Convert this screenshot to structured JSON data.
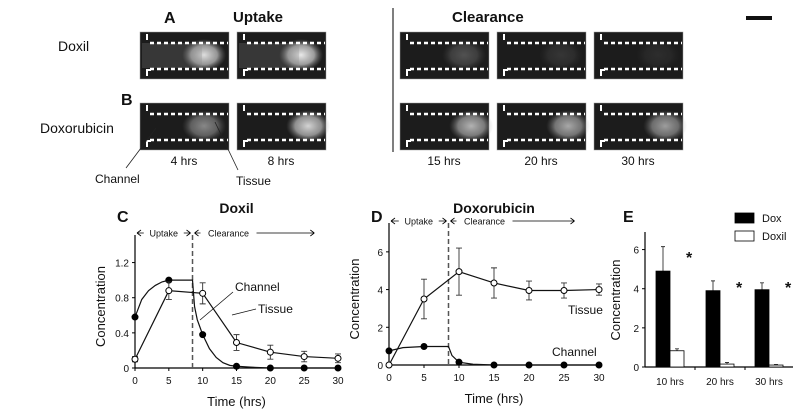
{
  "figure": {
    "panel_a": {
      "letter": "A",
      "row_label": "Doxil"
    },
    "panel_b": {
      "letter": "B",
      "row_label": "Doxorubicin"
    },
    "phase_uptake": "Uptake",
    "phase_clearance": "Clearance",
    "time_labels": [
      "4 hrs",
      "8 hrs",
      "15 hrs",
      "20 hrs",
      "30 hrs"
    ],
    "annot_channel": "Channel",
    "annot_tissue": "Tissue",
    "doxil_intensity": [
      0.9,
      0.95,
      0.25,
      0.12,
      0.08
    ],
    "dox_intensity": [
      0.5,
      0.85,
      0.7,
      0.65,
      0.6
    ]
  },
  "chart_data": [
    {
      "letter": "C",
      "type": "line",
      "title": "Doxil",
      "xlabel": "Time (hrs)",
      "ylabel": "Concentration",
      "xlim": [
        0,
        30
      ],
      "ylim": [
        0,
        1.4
      ],
      "xticks": [
        0,
        5,
        10,
        15,
        20,
        25,
        30
      ],
      "yticks": [
        "0",
        "0.4",
        "0.8",
        "1.2"
      ],
      "ytick_values": [
        0,
        0.4,
        0.8,
        1.2
      ],
      "phase_split": 8.5,
      "phase_labels": [
        "Uptake",
        "Clearance"
      ],
      "series": [
        {
          "name": "Channel",
          "marker": "filled",
          "x": [
            0,
            5,
            10,
            15,
            20,
            25,
            30
          ],
          "y": [
            0.58,
            1.0,
            0.38,
            0.02,
            0,
            0,
            0
          ],
          "err": [
            0,
            0,
            0,
            0,
            0,
            0,
            0
          ],
          "curve_x": [
            0,
            1,
            2,
            3,
            4,
            5,
            6,
            7,
            8.5,
            8.8,
            9.2,
            10,
            11,
            12,
            13,
            14,
            15,
            17,
            20,
            30
          ],
          "curve_y": [
            0.58,
            0.78,
            0.88,
            0.94,
            0.98,
            1.0,
            1.0,
            1.0,
            1.0,
            0.7,
            0.55,
            0.38,
            0.22,
            0.12,
            0.06,
            0.03,
            0.02,
            0.01,
            0,
            0
          ]
        },
        {
          "name": "Tissue",
          "marker": "open",
          "x": [
            0,
            5,
            10,
            15,
            20,
            25,
            30
          ],
          "y": [
            0.1,
            0.88,
            0.85,
            0.29,
            0.18,
            0.13,
            0.11
          ],
          "err": [
            0.03,
            0.1,
            0.12,
            0.09,
            0.08,
            0.06,
            0.05
          ]
        }
      ]
    },
    {
      "letter": "D",
      "type": "line",
      "title": "Doxorubicin",
      "xlabel": "Time (hrs)",
      "ylabel": "Concentration",
      "xlim": [
        0,
        30
      ],
      "ylim": [
        0,
        7
      ],
      "xticks": [
        0,
        5,
        10,
        15,
        20,
        25,
        30
      ],
      "yticks": [
        "0",
        "2",
        "4",
        "6"
      ],
      "ytick_values": [
        0,
        2,
        4,
        6
      ],
      "phase_split": 8.5,
      "phase_labels": [
        "Uptake",
        "Clearance"
      ],
      "series": [
        {
          "name": "Channel",
          "marker": "filled",
          "x": [
            0,
            5,
            10,
            15,
            20,
            25,
            30
          ],
          "y": [
            0.75,
            0.98,
            0.15,
            0,
            0,
            0,
            0
          ],
          "err": [
            0,
            0,
            0,
            0,
            0,
            0,
            0
          ],
          "curve_x": [
            0,
            2,
            5,
            8.5,
            9,
            10,
            12,
            15,
            30
          ],
          "curve_y": [
            0.75,
            0.92,
            0.98,
            0.98,
            0.5,
            0.15,
            0.04,
            0,
            0
          ]
        },
        {
          "name": "Tissue",
          "marker": "open",
          "x": [
            0,
            5,
            10,
            15,
            20,
            25,
            30
          ],
          "y": [
            0,
            3.5,
            4.95,
            4.35,
            3.95,
            3.95,
            4.0
          ],
          "err": [
            0,
            1.05,
            1.25,
            0.8,
            0.5,
            0.4,
            0.3
          ]
        }
      ]
    },
    {
      "letter": "E",
      "type": "bar",
      "ylabel": "Concentration",
      "ylim": [
        0,
        7
      ],
      "yticks": [
        "0",
        "2",
        "4",
        "6"
      ],
      "ytick_values": [
        0,
        2,
        4,
        6
      ],
      "categories": [
        "10 hrs",
        "20 hrs",
        "30 hrs"
      ],
      "significance": [
        "*",
        "*",
        "*"
      ],
      "series": [
        {
          "name": "Dox",
          "color": "#000000",
          "values": [
            4.9,
            3.9,
            3.95
          ],
          "err": [
            1.25,
            0.5,
            0.35
          ]
        },
        {
          "name": "Doxil",
          "color": "#ffffff",
          "values": [
            0.83,
            0.15,
            0.1
          ],
          "err": [
            0.1,
            0.08,
            0.03
          ]
        }
      ],
      "legend": "top-right"
    }
  ]
}
